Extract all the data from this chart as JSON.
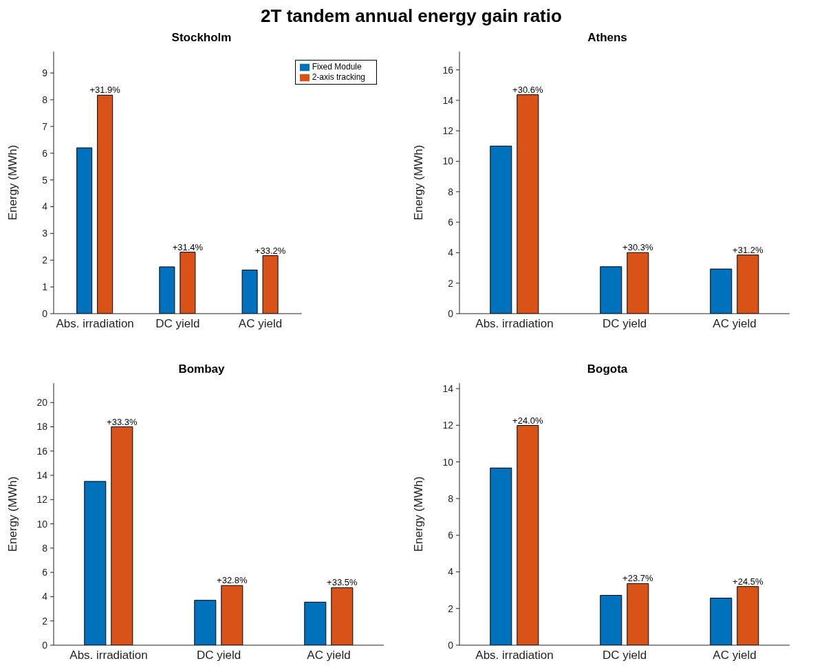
{
  "chart_data": [
    {
      "type": "bar",
      "title": "Stockholm",
      "ylabel": "Energy (MWh)",
      "categories": [
        "Abs. irradiation",
        "DC yield",
        "AC yield"
      ],
      "ylim": [
        0,
        9.8
      ],
      "yticks": [
        0,
        1,
        2,
        3,
        4,
        5,
        6,
        7,
        8,
        9
      ],
      "grid": false,
      "legend": "top right",
      "annotations": [
        "2T tandem annual energy gain ratio",
        {
          "text": "+31.9%",
          "x": "Abs. irradiation",
          "y": 8.17
        },
        {
          "text": "+31.4%",
          "x": "DC yield",
          "y": 2.3
        },
        {
          "text": "+33.2%",
          "x": "AC yield",
          "y": 2.17
        }
      ],
      "series": [
        {
          "name": "Fixed Module",
          "color": "#0072bd",
          "values": [
            6.2,
            1.75,
            1.63
          ]
        },
        {
          "name": "2-axis tracking",
          "color": "#d95319",
          "values": [
            8.17,
            2.3,
            2.17
          ]
        }
      ]
    },
    {
      "type": "bar",
      "title": "Athens",
      "ylabel": "Energy (MWh)",
      "categories": [
        "Abs. irradiation",
        "DC yield",
        "AC yield"
      ],
      "ylim": [
        0,
        17.2
      ],
      "yticks": [
        0,
        2,
        4,
        6,
        8,
        10,
        12,
        14,
        16
      ],
      "grid": false,
      "legend": false,
      "annotations": [
        {
          "text": "+30.6%",
          "x": "Abs. irradiation",
          "y": 14.37
        },
        {
          "text": "+30.3%",
          "x": "DC yield",
          "y": 4.01
        },
        {
          "text": "+31.2%",
          "x": "AC yield",
          "y": 3.85
        }
      ],
      "series": [
        {
          "color": "#0072bd",
          "values": [
            11.0,
            3.08,
            2.93
          ]
        },
        {
          "color": "#d95319",
          "values": [
            14.37,
            4.01,
            3.85
          ]
        }
      ]
    },
    {
      "type": "bar",
      "title": "Bombay",
      "ylabel": "Energy (MWh)",
      "categories": [
        "Abs. irradiation",
        "DC yield",
        "AC yield"
      ],
      "ylim": [
        0,
        21.6
      ],
      "yticks": [
        0,
        2,
        4,
        6,
        8,
        10,
        12,
        14,
        16,
        18,
        20
      ],
      "grid": false,
      "legend": false,
      "annotations": [
        {
          "text": "+33.3%",
          "x": "Abs. irradiation",
          "y": 18.0
        },
        {
          "text": "+32.8%",
          "x": "DC yield",
          "y": 4.92
        },
        {
          "text": "+33.5%",
          "x": "AC yield",
          "y": 4.74
        }
      ],
      "series": [
        {
          "color": "#0072bd",
          "values": [
            13.5,
            3.7,
            3.55
          ]
        },
        {
          "color": "#d95319",
          "values": [
            18.0,
            4.92,
            4.74
          ]
        }
      ]
    },
    {
      "type": "bar",
      "title": "Bogota",
      "ylabel": "Energy (MWh)",
      "categories": [
        "Abs. irradiation",
        "DC yield",
        "AC yield"
      ],
      "ylim": [
        0,
        14.3
      ],
      "yticks": [
        0,
        2,
        4,
        6,
        8,
        10,
        12,
        14
      ],
      "grid": false,
      "legend": false,
      "annotations": [
        {
          "text": "+24.0%",
          "x": "Abs. irradiation",
          "y": 11.99
        },
        {
          "text": "+23.7%",
          "x": "DC yield",
          "y": 3.36
        },
        {
          "text": "+24.5%",
          "x": "AC yield",
          "y": 3.2
        }
      ],
      "series": [
        {
          "color": "#0072bd",
          "values": [
            9.67,
            2.72,
            2.57
          ]
        },
        {
          "color": "#d95319",
          "values": [
            11.99,
            3.36,
            3.2
          ]
        }
      ]
    }
  ]
}
